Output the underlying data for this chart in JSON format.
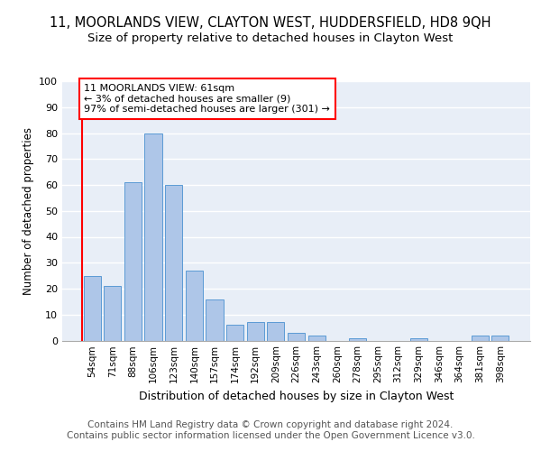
{
  "title": "11, MOORLANDS VIEW, CLAYTON WEST, HUDDERSFIELD, HD8 9QH",
  "subtitle": "Size of property relative to detached houses in Clayton West",
  "xlabel": "Distribution of detached houses by size in Clayton West",
  "ylabel": "Number of detached properties",
  "categories": [
    "54sqm",
    "71sqm",
    "88sqm",
    "106sqm",
    "123sqm",
    "140sqm",
    "157sqm",
    "174sqm",
    "192sqm",
    "209sqm",
    "226sqm",
    "243sqm",
    "260sqm",
    "278sqm",
    "295sqm",
    "312sqm",
    "329sqm",
    "346sqm",
    "364sqm",
    "381sqm",
    "398sqm"
  ],
  "values": [
    25,
    21,
    61,
    80,
    60,
    27,
    16,
    6,
    7,
    7,
    3,
    2,
    0,
    1,
    0,
    0,
    1,
    0,
    0,
    2,
    2
  ],
  "bar_color": "#aec6e8",
  "bar_edge_color": "#5b9bd5",
  "background_color": "#e8eef7",
  "annotation_text": "11 MOORLANDS VIEW: 61sqm\n← 3% of detached houses are smaller (9)\n97% of semi-detached houses are larger (301) →",
  "annotation_box_color": "white",
  "annotation_box_edge_color": "red",
  "footer": "Contains HM Land Registry data © Crown copyright and database right 2024.\nContains public sector information licensed under the Open Government Licence v3.0.",
  "ylim": [
    0,
    100
  ],
  "yticks": [
    0,
    10,
    20,
    30,
    40,
    50,
    60,
    70,
    80,
    90,
    100
  ],
  "title_fontsize": 10.5,
  "subtitle_fontsize": 9.5,
  "footer_fontsize": 7.5
}
